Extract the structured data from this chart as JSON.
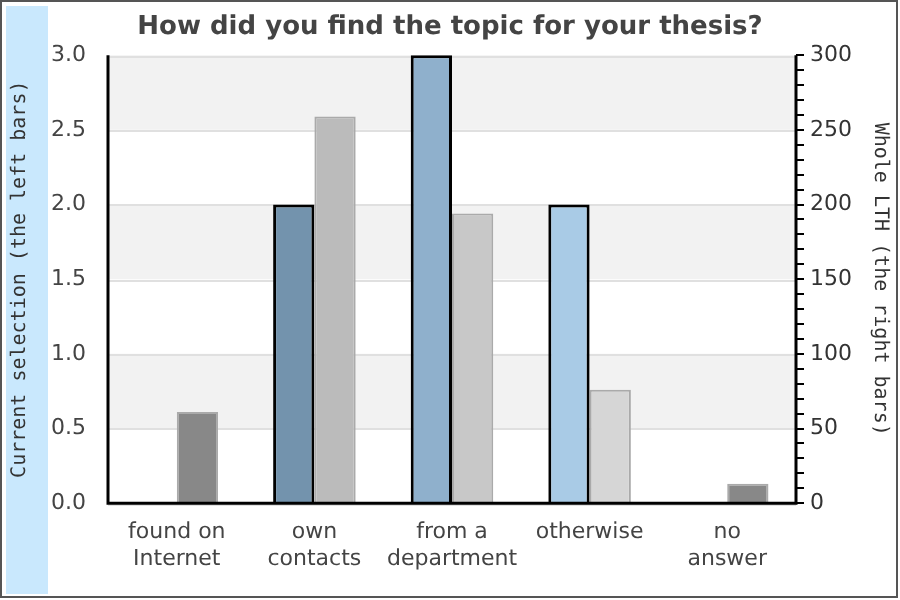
{
  "chart_data": {
    "type": "bar",
    "title": "How did you find the topic for your thesis?",
    "categories": [
      "found on Internet",
      "own contacts",
      "from a department",
      "otherwise",
      "no answer"
    ],
    "ylabel": "Current selection (the left bars)",
    "y2label": "Whole LTH (the right bars)",
    "series": [
      {
        "values": [
          0,
          2,
          3,
          2,
          0
        ],
        "colors": [
          "#7393ad",
          "#7393ad",
          "#8fb0cc",
          "#a9cbe6",
          "#a9cbe6"
        ]
      },
      {
        "values": [
          61,
          259,
          194,
          76,
          13
        ],
        "colors": [
          "#888888",
          "#bbbbbb",
          "#c8c8c8",
          "#d6d6d6",
          "#888888"
        ],
        "axis": "y2"
      }
    ],
    "ylim": [
      0,
      3
    ],
    "yticks": [
      {
        "value": 0,
        "label": "0.0"
      },
      0.5,
      {
        "value": 1,
        "label": "1.0"
      },
      1.5,
      {
        "value": 2,
        "label": "2.0"
      },
      2.5,
      {
        "value": 3,
        "label": "3.0"
      }
    ],
    "y2lim": [
      0,
      300
    ],
    "y2ticks": [
      0,
      {
        "value": 10,
        "label": null
      },
      {
        "value": 20,
        "label": null
      },
      {
        "value": 30,
        "label": null
      },
      {
        "value": 40,
        "label": null
      },
      50,
      {
        "value": 60,
        "label": null
      },
      {
        "value": 70,
        "label": null
      },
      {
        "value": 80,
        "label": null
      },
      {
        "value": 90,
        "label": null
      },
      100,
      {
        "value": 110,
        "label": null
      },
      {
        "value": 120,
        "label": null
      },
      {
        "value": 130,
        "label": null
      },
      {
        "value": 140,
        "label": null
      },
      150,
      {
        "value": 160,
        "label": null
      },
      {
        "value": 170,
        "label": null
      },
      {
        "value": 180,
        "label": null
      },
      {
        "value": 190,
        "label": null
      },
      200,
      {
        "value": 210,
        "label": null
      },
      {
        "value": 220,
        "label": null
      },
      {
        "value": 230,
        "label": null
      },
      {
        "value": 240,
        "label": null
      },
      250,
      {
        "value": 260,
        "label": null
      },
      {
        "value": 270,
        "label": null
      },
      {
        "value": 280,
        "label": null
      },
      {
        "value": 290,
        "label": null
      },
      300
    ],
    "grid": "y"
  }
}
